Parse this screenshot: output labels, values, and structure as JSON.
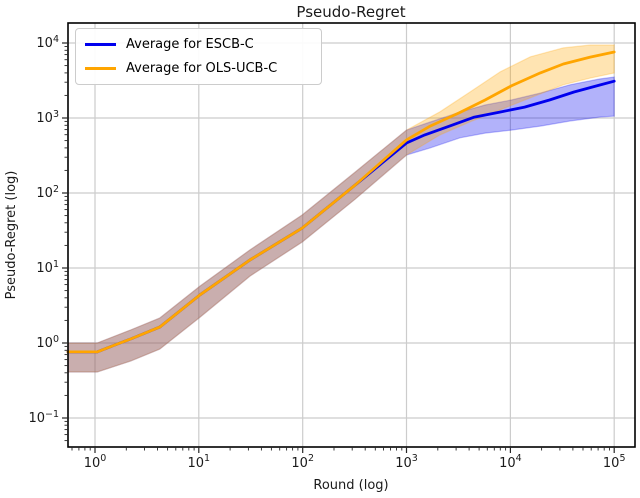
{
  "chart_data": {
    "type": "line",
    "title": "Pseudo-Regret",
    "xlabel": "Round (log)",
    "ylabel": "Pseudo-Regret (log)",
    "x_scale": "log",
    "y_scale": "log",
    "xlim_log10": [
      -0.26,
      5.2
    ],
    "ylim_log10": [
      -1.387,
      4.267
    ],
    "x_tick_exponents": [
      0,
      1,
      2,
      3,
      4,
      5
    ],
    "y_tick_exponents": [
      -1,
      0,
      1,
      2,
      3,
      4
    ],
    "grid": true,
    "grid_color": "#cccccc",
    "legend_position": "upper left",
    "legend_labels": [
      "Average for ESCB-C",
      "Average for OLS-UCB-C"
    ],
    "series": [
      {
        "id": "escb-c",
        "name": "Average for ESCB-C",
        "color": "#0000EE",
        "band_opacity": 0.3,
        "x": [
          0.55,
          1.05,
          1.55,
          2.2,
          4.2,
          10.3,
          31,
          99,
          320,
          1000,
          1500,
          2600,
          4500,
          7900,
          13700,
          23800,
          41000,
          72000,
          100000
        ],
        "y": [
          0.76,
          0.76,
          0.94,
          1.13,
          1.63,
          4.4,
          12.8,
          34,
          128,
          465,
          595,
          780,
          1030,
          1200,
          1400,
          1740,
          2220,
          2750,
          3100
        ],
        "band_x": [
          0.55,
          1.05,
          2.2,
          4.2,
          10.3,
          31,
          99,
          320,
          1000,
          1690,
          3280,
          5710,
          10200,
          19400,
          37600,
          72000,
          100000
        ],
        "band_upper": [
          1.0,
          1.0,
          1.49,
          2.15,
          5.75,
          17.4,
          50.9,
          190,
          690,
          885,
          1200,
          1490,
          1740,
          2150,
          2770,
          3310,
          3520
        ],
        "band_lower": [
          0.41,
          0.41,
          0.575,
          0.83,
          2.22,
          7.8,
          22.2,
          83,
          321,
          400,
          545,
          630,
          690,
          780,
          912,
          1030,
          1060
        ]
      },
      {
        "id": "ols-ucb-c",
        "name": "Average for OLS-UCB-C",
        "color": "#FFA500",
        "band_opacity": 0.3,
        "x": [
          0.55,
          1.05,
          1.55,
          2.2,
          4.2,
          10.3,
          31,
          99,
          320,
          1000,
          1690,
          3210,
          5710,
          10200,
          19400,
          32300,
          58700,
          100000
        ],
        "y": [
          0.76,
          0.76,
          0.94,
          1.13,
          1.63,
          4.4,
          12.8,
          34,
          128,
          510,
          780,
          1170,
          1740,
          2680,
          4000,
          5250,
          6500,
          7600
        ],
        "band_x": [
          0.55,
          1.05,
          2.2,
          4.2,
          10.3,
          31,
          99,
          320,
          1000,
          2100,
          4100,
          8000,
          15600,
          32300,
          58700,
          100000
        ],
        "band_upper": [
          1.0,
          1.0,
          1.49,
          2.15,
          5.75,
          17.4,
          50.9,
          190,
          690,
          1210,
          2230,
          4130,
          6550,
          8610,
          9400,
          9400
        ],
        "band_lower": [
          0.41,
          0.41,
          0.575,
          0.83,
          2.22,
          7.8,
          22.2,
          83,
          321,
          595,
          890,
          1290,
          1860,
          2770,
          3410,
          3980
        ]
      }
    ]
  }
}
